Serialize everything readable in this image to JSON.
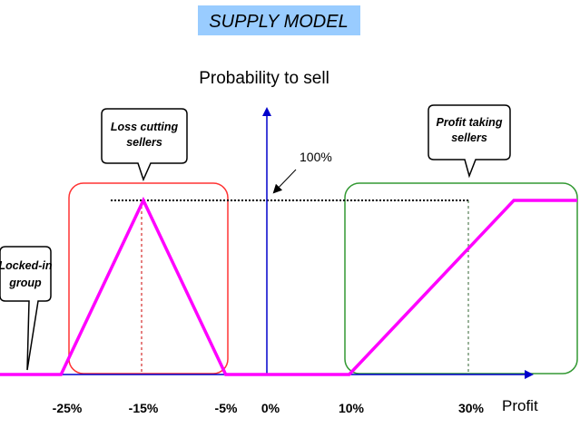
{
  "title": "SUPPLY MODEL",
  "y_axis_title": "Probability to sell",
  "x_axis_title": "Profit",
  "hundred_label": "100%",
  "colors": {
    "title_bg": "#99ccff",
    "curve": "#ff00ff",
    "axis": "#0000cc",
    "loss_box": "#ff3333",
    "profit_box": "#339933",
    "dotted_line": "#000000"
  },
  "x_ticks": [
    "-25%",
    "-15%",
    "-5%",
    "0%",
    "10%",
    "30%"
  ],
  "callouts": {
    "loss": [
      "Loss cutting",
      "sellers"
    ],
    "profit": [
      "Profit taking",
      "sellers"
    ],
    "locked": [
      "Locked-in",
      "group"
    ]
  },
  "chart_data": {
    "type": "line",
    "x_unit": "profit %",
    "y_unit": "probability to sell",
    "series": [
      {
        "x": [
          -25,
          -15,
          -5,
          10,
          30,
          40
        ],
        "y": [
          0,
          1,
          0,
          0,
          1,
          1
        ]
      }
    ],
    "ylim": [
      0,
      1
    ],
    "grid": false
  }
}
